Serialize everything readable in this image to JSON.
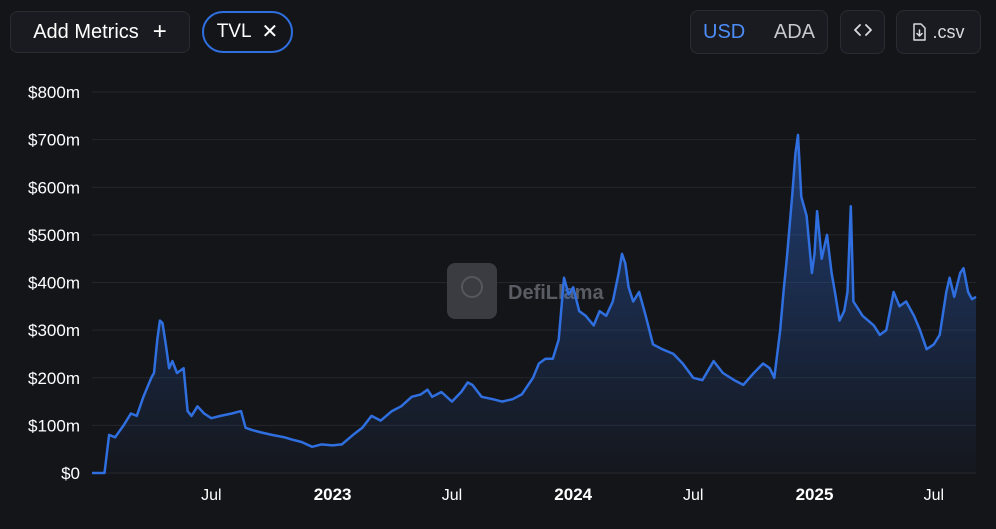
{
  "toolbar": {
    "add_metrics_label": "Add Metrics",
    "add_metrics_icon": "plus-icon",
    "metric_chip_label": "TVL",
    "metric_chip_icon": "close-icon",
    "currency_options": [
      "USD",
      "ADA"
    ],
    "currency_selected": "USD",
    "embed_icon": "code-icon",
    "csv_label": ".csv",
    "csv_icon": "download-file-icon"
  },
  "watermark": {
    "text": "DefiLlama",
    "icon": "llama-logo-icon"
  },
  "colors": {
    "background": "#141519",
    "line": "#2f6fe0",
    "accent": "#4d8df7"
  },
  "chart_data": {
    "type": "area",
    "title": "",
    "xlabel": "",
    "ylabel": "",
    "ylim": [
      0,
      800
    ],
    "y_unit": "$m",
    "yticks": [
      "$0",
      "$100m",
      "$200m",
      "$300m",
      "$400m",
      "$500m",
      "$600m",
      "$700m",
      "$800m"
    ],
    "yticks_values": [
      0,
      100,
      200,
      300,
      400,
      500,
      600,
      700,
      800
    ],
    "xticks": [
      {
        "label": "Jul",
        "date": "2022-07-01",
        "bold": false
      },
      {
        "label": "2023",
        "date": "2023-01-01",
        "bold": true
      },
      {
        "label": "Jul",
        "date": "2023-07-01",
        "bold": false
      },
      {
        "label": "2024",
        "date": "2024-01-01",
        "bold": true
      },
      {
        "label": "Jul",
        "date": "2024-07-01",
        "bold": false
      },
      {
        "label": "2025",
        "date": "2025-01-01",
        "bold": true
      },
      {
        "label": "Jul",
        "date": "2025-07-01",
        "bold": false
      }
    ],
    "grid": true,
    "legend": "none",
    "series": [
      {
        "name": "TVL",
        "points": [
          [
            "2022-01-01",
            0
          ],
          [
            "2022-01-20",
            0
          ],
          [
            "2022-01-27",
            80
          ],
          [
            "2022-02-05",
            75
          ],
          [
            "2022-02-18",
            100
          ],
          [
            "2022-03-01",
            125
          ],
          [
            "2022-03-10",
            120
          ],
          [
            "2022-03-20",
            160
          ],
          [
            "2022-04-01",
            200
          ],
          [
            "2022-04-05",
            210
          ],
          [
            "2022-04-10",
            280
          ],
          [
            "2022-04-14",
            320
          ],
          [
            "2022-04-18",
            315
          ],
          [
            "2022-04-23",
            270
          ],
          [
            "2022-04-28",
            220
          ],
          [
            "2022-05-03",
            235
          ],
          [
            "2022-05-10",
            210
          ],
          [
            "2022-05-20",
            220
          ],
          [
            "2022-05-26",
            130
          ],
          [
            "2022-06-01",
            120
          ],
          [
            "2022-06-10",
            140
          ],
          [
            "2022-06-20",
            125
          ],
          [
            "2022-07-01",
            115
          ],
          [
            "2022-07-15",
            120
          ],
          [
            "2022-08-01",
            125
          ],
          [
            "2022-08-15",
            130
          ],
          [
            "2022-08-22",
            95
          ],
          [
            "2022-09-01",
            90
          ],
          [
            "2022-09-15",
            85
          ],
          [
            "2022-10-01",
            80
          ],
          [
            "2022-10-20",
            75
          ],
          [
            "2022-11-01",
            70
          ],
          [
            "2022-11-15",
            65
          ],
          [
            "2022-12-01",
            55
          ],
          [
            "2022-12-15",
            60
          ],
          [
            "2023-01-01",
            58
          ],
          [
            "2023-01-15",
            60
          ],
          [
            "2023-02-01",
            80
          ],
          [
            "2023-02-15",
            95
          ],
          [
            "2023-03-01",
            120
          ],
          [
            "2023-03-15",
            110
          ],
          [
            "2023-04-01",
            130
          ],
          [
            "2023-04-15",
            140
          ],
          [
            "2023-05-01",
            160
          ],
          [
            "2023-05-15",
            165
          ],
          [
            "2023-05-25",
            175
          ],
          [
            "2023-06-01",
            160
          ],
          [
            "2023-06-15",
            170
          ],
          [
            "2023-07-01",
            150
          ],
          [
            "2023-07-15",
            170
          ],
          [
            "2023-07-25",
            190
          ],
          [
            "2023-08-01",
            185
          ],
          [
            "2023-08-15",
            160
          ],
          [
            "2023-09-01",
            155
          ],
          [
            "2023-09-15",
            150
          ],
          [
            "2023-10-01",
            155
          ],
          [
            "2023-10-15",
            165
          ],
          [
            "2023-11-01",
            200
          ],
          [
            "2023-11-10",
            230
          ],
          [
            "2023-11-20",
            240
          ],
          [
            "2023-12-01",
            240
          ],
          [
            "2023-12-10",
            280
          ],
          [
            "2023-12-18",
            410
          ],
          [
            "2023-12-25",
            375
          ],
          [
            "2024-01-01",
            390
          ],
          [
            "2024-01-10",
            340
          ],
          [
            "2024-01-20",
            330
          ],
          [
            "2024-02-01",
            310
          ],
          [
            "2024-02-10",
            340
          ],
          [
            "2024-02-20",
            330
          ],
          [
            "2024-03-01",
            360
          ],
          [
            "2024-03-10",
            420
          ],
          [
            "2024-03-15",
            460
          ],
          [
            "2024-03-20",
            440
          ],
          [
            "2024-03-25",
            390
          ],
          [
            "2024-04-01",
            360
          ],
          [
            "2024-04-10",
            380
          ],
          [
            "2024-04-20",
            330
          ],
          [
            "2024-05-01",
            270
          ],
          [
            "2024-05-15",
            260
          ],
          [
            "2024-06-01",
            250
          ],
          [
            "2024-06-15",
            230
          ],
          [
            "2024-07-01",
            200
          ],
          [
            "2024-07-15",
            195
          ],
          [
            "2024-08-01",
            235
          ],
          [
            "2024-08-15",
            210
          ],
          [
            "2024-09-01",
            195
          ],
          [
            "2024-09-15",
            185
          ],
          [
            "2024-10-01",
            210
          ],
          [
            "2024-10-15",
            230
          ],
          [
            "2024-10-25",
            220
          ],
          [
            "2024-11-01",
            200
          ],
          [
            "2024-11-10",
            300
          ],
          [
            "2024-11-15",
            380
          ],
          [
            "2024-11-20",
            450
          ],
          [
            "2024-11-28",
            580
          ],
          [
            "2024-12-03",
            670
          ],
          [
            "2024-12-07",
            710
          ],
          [
            "2024-12-12",
            580
          ],
          [
            "2024-12-20",
            540
          ],
          [
            "2024-12-28",
            420
          ],
          [
            "2025-01-01",
            460
          ],
          [
            "2025-01-05",
            550
          ],
          [
            "2025-01-12",
            450
          ],
          [
            "2025-01-20",
            500
          ],
          [
            "2025-01-27",
            420
          ],
          [
            "2025-02-01",
            380
          ],
          [
            "2025-02-08",
            320
          ],
          [
            "2025-02-15",
            340
          ],
          [
            "2025-02-20",
            380
          ],
          [
            "2025-02-25",
            560
          ],
          [
            "2025-03-01",
            360
          ],
          [
            "2025-03-15",
            330
          ],
          [
            "2025-04-01",
            310
          ],
          [
            "2025-04-10",
            290
          ],
          [
            "2025-04-20",
            300
          ],
          [
            "2025-05-01",
            380
          ],
          [
            "2025-05-10",
            350
          ],
          [
            "2025-05-20",
            360
          ],
          [
            "2025-06-01",
            330
          ],
          [
            "2025-06-10",
            300
          ],
          [
            "2025-06-20",
            260
          ],
          [
            "2025-07-01",
            270
          ],
          [
            "2025-07-10",
            290
          ],
          [
            "2025-07-20",
            380
          ],
          [
            "2025-07-25",
            410
          ],
          [
            "2025-08-01",
            370
          ],
          [
            "2025-08-10",
            420
          ],
          [
            "2025-08-15",
            430
          ],
          [
            "2025-08-22",
            380
          ],
          [
            "2025-08-28",
            365
          ],
          [
            "2025-09-03",
            370
          ]
        ]
      }
    ]
  }
}
